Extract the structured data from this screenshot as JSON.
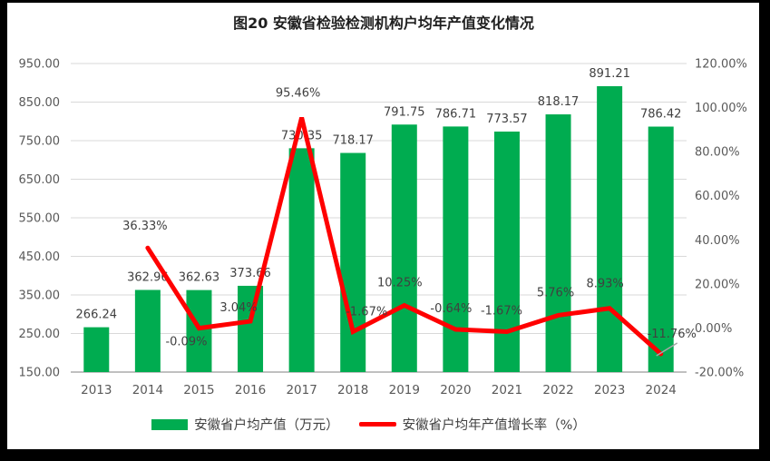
{
  "chart_data": {
    "type": "combo-bar-line",
    "title": "图20 安徽省检验检测机构户均年产值变化情况",
    "categories": [
      "2013",
      "2014",
      "2015",
      "2016",
      "2017",
      "2018",
      "2019",
      "2020",
      "2021",
      "2022",
      "2023",
      "2024"
    ],
    "series": [
      {
        "name": "安徽省户均产值（万元）",
        "type": "bar",
        "axis": "left",
        "color": "#00AC50",
        "values": [
          266.24,
          362.96,
          362.63,
          373.66,
          730.35,
          718.17,
          791.75,
          786.71,
          773.57,
          818.17,
          891.21,
          786.42
        ],
        "value_labels": [
          "266.24",
          "362.96",
          "362.63",
          "373.66",
          "730.35",
          "718.17",
          "791.75",
          "786.71",
          "773.57",
          "818.17",
          "891.21",
          "786.42"
        ]
      },
      {
        "name": "安徽省户均年产值增长率（%）",
        "type": "line",
        "axis": "right",
        "color": "#FF0000",
        "values": [
          null,
          36.33,
          -0.09,
          3.04,
          95.46,
          -1.67,
          10.25,
          -0.64,
          -1.67,
          5.76,
          8.93,
          -11.76
        ],
        "value_labels": [
          null,
          "36.33%",
          "-0.09%",
          "3.04%",
          "95.46%",
          "-1.67%",
          "10.25%",
          "-0.64%",
          "-1.67%",
          "5.76%",
          "8.93%",
          "-11.76%"
        ]
      }
    ],
    "left_axis": {
      "min": 150,
      "max": 950,
      "step": 100,
      "tick_labels": [
        "150.00",
        "250.00",
        "350.00",
        "450.00",
        "550.00",
        "650.00",
        "750.00",
        "850.00",
        "950.00"
      ]
    },
    "right_axis": {
      "min": -20,
      "max": 120,
      "step": 20,
      "tick_labels": [
        "-20.00%",
        "0.00%",
        "20.00%",
        "40.00%",
        "60.00%",
        "80.00%",
        "100.00%",
        "120.00%"
      ]
    },
    "grid": true,
    "grid_color": "#D9D9D9",
    "axis_line_color": "#C0C0C0",
    "leader_line_color": "#A6A6A6",
    "legend_position": "bottom"
  },
  "legend": {
    "items": [
      {
        "label": "安徽省户均产值（万元）",
        "swatch": "bar",
        "color": "#00AC50"
      },
      {
        "label": "安徽省户均年产值增长率（%）",
        "swatch": "line",
        "color": "#FF0000"
      }
    ]
  }
}
